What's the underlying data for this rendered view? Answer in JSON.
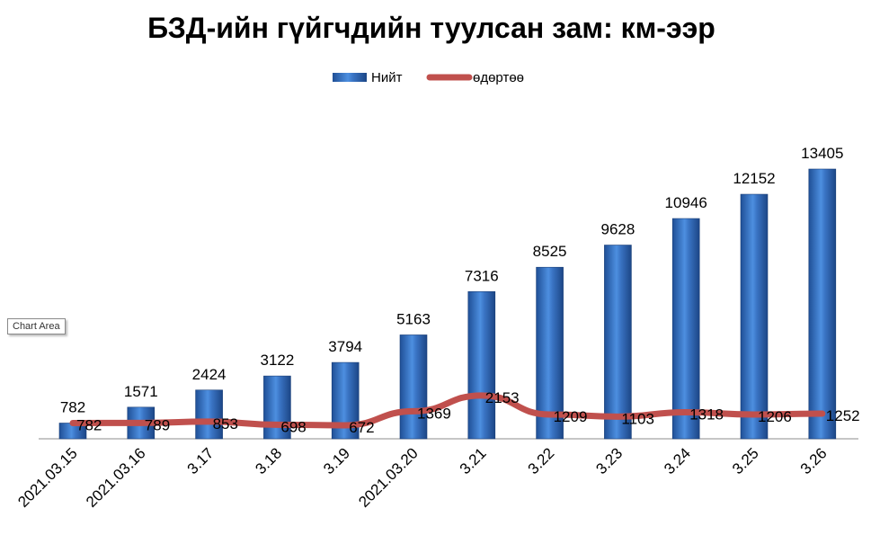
{
  "chart_data": {
    "type": "bar",
    "title": "БЗД-ийн гүйгчдийн туулсан зам:  км-ээр",
    "categories": [
      "2021.03.15",
      "2021.03.16",
      "3.17",
      "3.18",
      "3.19",
      "2021.03.20",
      "3.21",
      "3.22",
      "3.23",
      "3.24",
      "3.25",
      "3.26"
    ],
    "series": [
      {
        "name": "Нийт",
        "type": "bar",
        "values": [
          782,
          1571,
          2424,
          3122,
          3794,
          5163,
          7316,
          8525,
          9628,
          10946,
          12152,
          13405
        ],
        "color": "#3a74c4"
      },
      {
        "name": "өдөртөө",
        "type": "line",
        "values": [
          782,
          789,
          853,
          698,
          672,
          1369,
          2153,
          1209,
          1103,
          1318,
          1206,
          1252
        ],
        "color": "#c0504d"
      }
    ],
    "ylim": [
      0,
      17500
    ],
    "legend_position": "top",
    "grid": false
  },
  "tooltip": "Chart Area"
}
